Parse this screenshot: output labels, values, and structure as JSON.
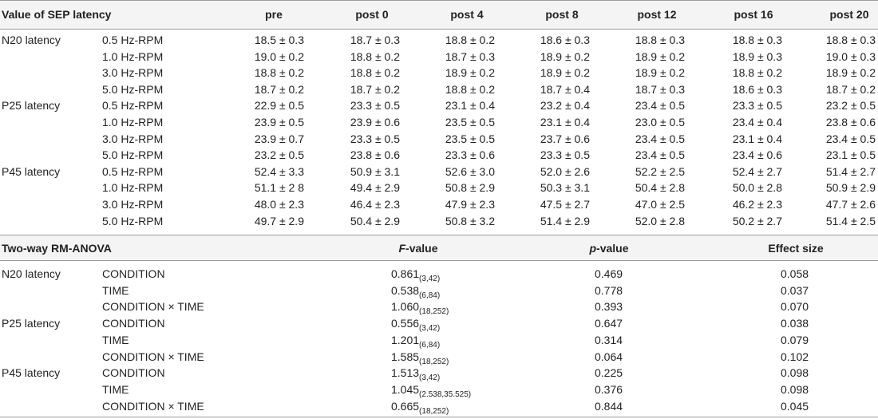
{
  "sep": {
    "title": "Value of SEP latency",
    "columns": [
      "pre",
      "post 0",
      "post 4",
      "post 8",
      "post 12",
      "post 16",
      "post 20"
    ],
    "groups": [
      {
        "name": "N20 latency",
        "rows": [
          {
            "condition": "0.5 Hz-RPM",
            "values": [
              "18.5 ± 0.3",
              "18.7 ± 0.3",
              "18.8 ± 0.2",
              "18.6 ± 0.3",
              "18.8 ± 0.3",
              "18.8 ± 0.3",
              "18.8 ± 0.3"
            ]
          },
          {
            "condition": "1.0 Hz-RPM",
            "values": [
              "19.0 ± 0.2",
              "18.8 ± 0.2",
              "18.7 ± 0.3",
              "18.9 ± 0.2",
              "18.9 ± 0.2",
              "18.9 ± 0.3",
              "19.0 ± 0.3"
            ]
          },
          {
            "condition": "3.0 Hz-RPM",
            "values": [
              "18.8 ± 0.2",
              "18.8 ± 0.2",
              "18.9 ± 0.2",
              "18.9 ± 0.2",
              "18.9 ± 0.2",
              "18.8 ± 0.2",
              "18.9 ± 0.2"
            ]
          },
          {
            "condition": "5.0 Hz-RPM",
            "values": [
              "18.7 ± 0.2",
              "18.7 ± 0.2",
              "18.8 ± 0.2",
              "18.7 ± 0.4",
              "18.7 ± 0.3",
              "18.6 ± 0.3",
              "18.7 ± 0.2"
            ]
          }
        ]
      },
      {
        "name": "P25 latency",
        "rows": [
          {
            "condition": "0.5 Hz-RPM",
            "values": [
              "22.9 ± 0.5",
              "23.3 ± 0.5",
              "23.1 ± 0.4",
              "23.2 ± 0.4",
              "23.4 ± 0.5",
              "23.3 ± 0.5",
              "23.2 ± 0.5"
            ]
          },
          {
            "condition": "1.0 Hz-RPM",
            "values": [
              "23.9 ± 0.5",
              "23.9 ± 0.6",
              "23.5 ± 0.5",
              "23.1 ± 0.4",
              "23.0 ± 0.5",
              "23.4 ± 0.4",
              "23.8 ± 0.6"
            ]
          },
          {
            "condition": "3.0 Hz-RPM",
            "values": [
              "23.9 ± 0.7",
              "23.3 ± 0.5",
              "23.5 ± 0.5",
              "23.7 ± 0.6",
              "23.4 ± 0.5",
              "23.1 ± 0.4",
              "23.4 ± 0.5"
            ]
          },
          {
            "condition": "5.0 Hz-RPM",
            "values": [
              "23.2 ± 0.5",
              "23.8 ± 0.6",
              "23.3 ± 0.6",
              "23.3 ± 0.5",
              "23.4 ± 0.5",
              "23.4 ± 0.6",
              "23.1 ± 0.5"
            ]
          }
        ]
      },
      {
        "name": "P45 latency",
        "rows": [
          {
            "condition": "0.5 Hz-RPM",
            "values": [
              "52.4 ± 3.3",
              "50.9 ± 3.1",
              "52.6 ± 3.0",
              "52.0 ± 2.6",
              "52.2 ± 2.5",
              "52.4 ± 2.7",
              "51.4 ± 2.7"
            ]
          },
          {
            "condition": "1.0 Hz-RPM",
            "values": [
              "51.1 ± 2 8",
              "49.4 ± 2.9",
              "50.8 ± 2.9",
              "50.3 ± 3.1",
              "50.4 ± 2.8",
              "50.0 ± 2.8",
              "50.9 ± 2.9"
            ]
          },
          {
            "condition": "3.0 Hz-RPM",
            "values": [
              "48.0 ± 2.3",
              "46.4 ± 2.3",
              "47.9 ± 2.3",
              "47.5 ± 2.7",
              "47.0 ± 2.5",
              "46.2 ± 2.3",
              "47.7 ± 2.6"
            ]
          },
          {
            "condition": "5.0 Hz-RPM",
            "values": [
              "49.7 ± 2.9",
              "50.4 ± 2.9",
              "50.8 ± 3.2",
              "51.4 ± 2.9",
              "52.0 ± 2.8",
              "50.2 ± 2.7",
              "51.4 ± 2.5"
            ]
          }
        ]
      }
    ]
  },
  "anova": {
    "title": "Two-way RM-ANOVA",
    "col_f_italic": "F",
    "col_f_rest": "-value",
    "col_p_italic": "p",
    "col_p_rest": "-value",
    "col_effect": "Effect size",
    "groups": [
      {
        "name": "N20 latency",
        "rows": [
          {
            "factor": "CONDITION",
            "f": "0.861",
            "df": "(3,42)",
            "p": "0.469",
            "effect": "0.058"
          },
          {
            "factor": "TIME",
            "f": "0.538",
            "df": "(6,84)",
            "p": "0.778",
            "effect": "0.037"
          },
          {
            "factor": "CONDITION × TIME",
            "f": "1.060",
            "df": "(18,252)",
            "p": "0.393",
            "effect": "0.070"
          }
        ]
      },
      {
        "name": "P25 latency",
        "rows": [
          {
            "factor": "CONDITION",
            "f": "0.556",
            "df": "(3,42)",
            "p": "0.647",
            "effect": "0.038"
          },
          {
            "factor": "TIME",
            "f": "1.201",
            "df": "(6,84)",
            "p": "0.314",
            "effect": "0.079"
          },
          {
            "factor": "CONDITION × TIME",
            "f": "1.585",
            "df": "(18,252)",
            "p": "0.064",
            "effect": "0.102"
          }
        ]
      },
      {
        "name": "P45 latency",
        "rows": [
          {
            "factor": "CONDITION",
            "f": "1.513",
            "df": "(3,42)",
            "p": "0.225",
            "effect": "0.098"
          },
          {
            "factor": "TIME",
            "f": "1.045",
            "df": "(2.538,35.525)",
            "p": "0.376",
            "effect": "0.098"
          },
          {
            "factor": "CONDITION × TIME",
            "f": "0.665",
            "df": "(18,252)",
            "p": "0.844",
            "effect": "0.045"
          }
        ]
      }
    ]
  }
}
